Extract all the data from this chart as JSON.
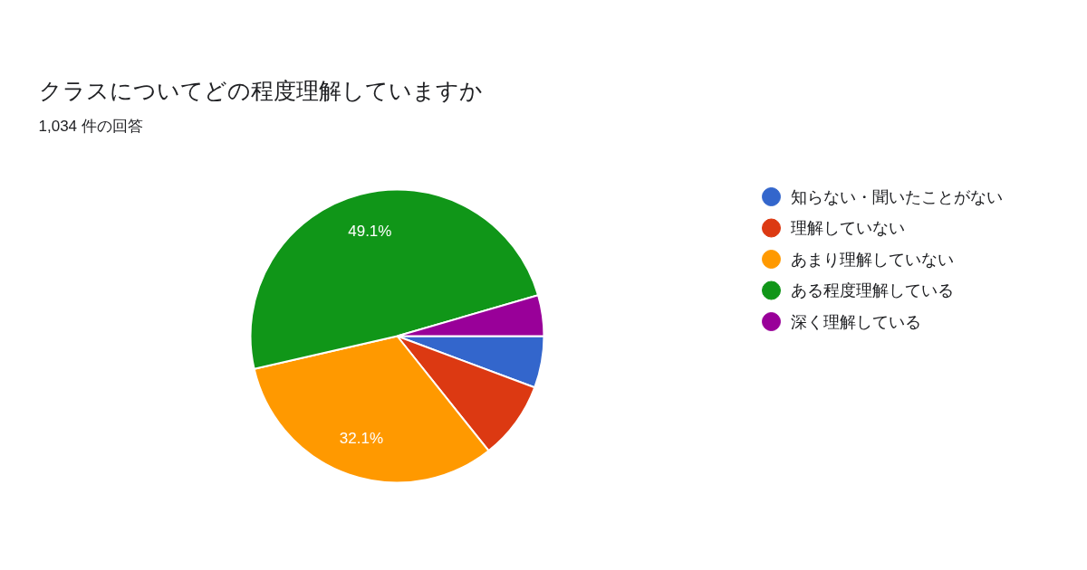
{
  "chart_data": {
    "type": "pie",
    "title": "クラスについてどの程度理解していますか",
    "subtitle": "1,034 件の回答",
    "categories": [
      "知らない・聞いたことがない",
      "理解していない",
      "あまり理解していない",
      "ある程度理解している",
      "深く理解している"
    ],
    "values": [
      5.7,
      8.6,
      32.1,
      49.1,
      4.5
    ],
    "colors": [
      "#3366cc",
      "#dc3912",
      "#ff9900",
      "#109618",
      "#990099"
    ],
    "value_labels": [
      null,
      null,
      "32.1%",
      "49.1%",
      null
    ],
    "legend": "right"
  }
}
